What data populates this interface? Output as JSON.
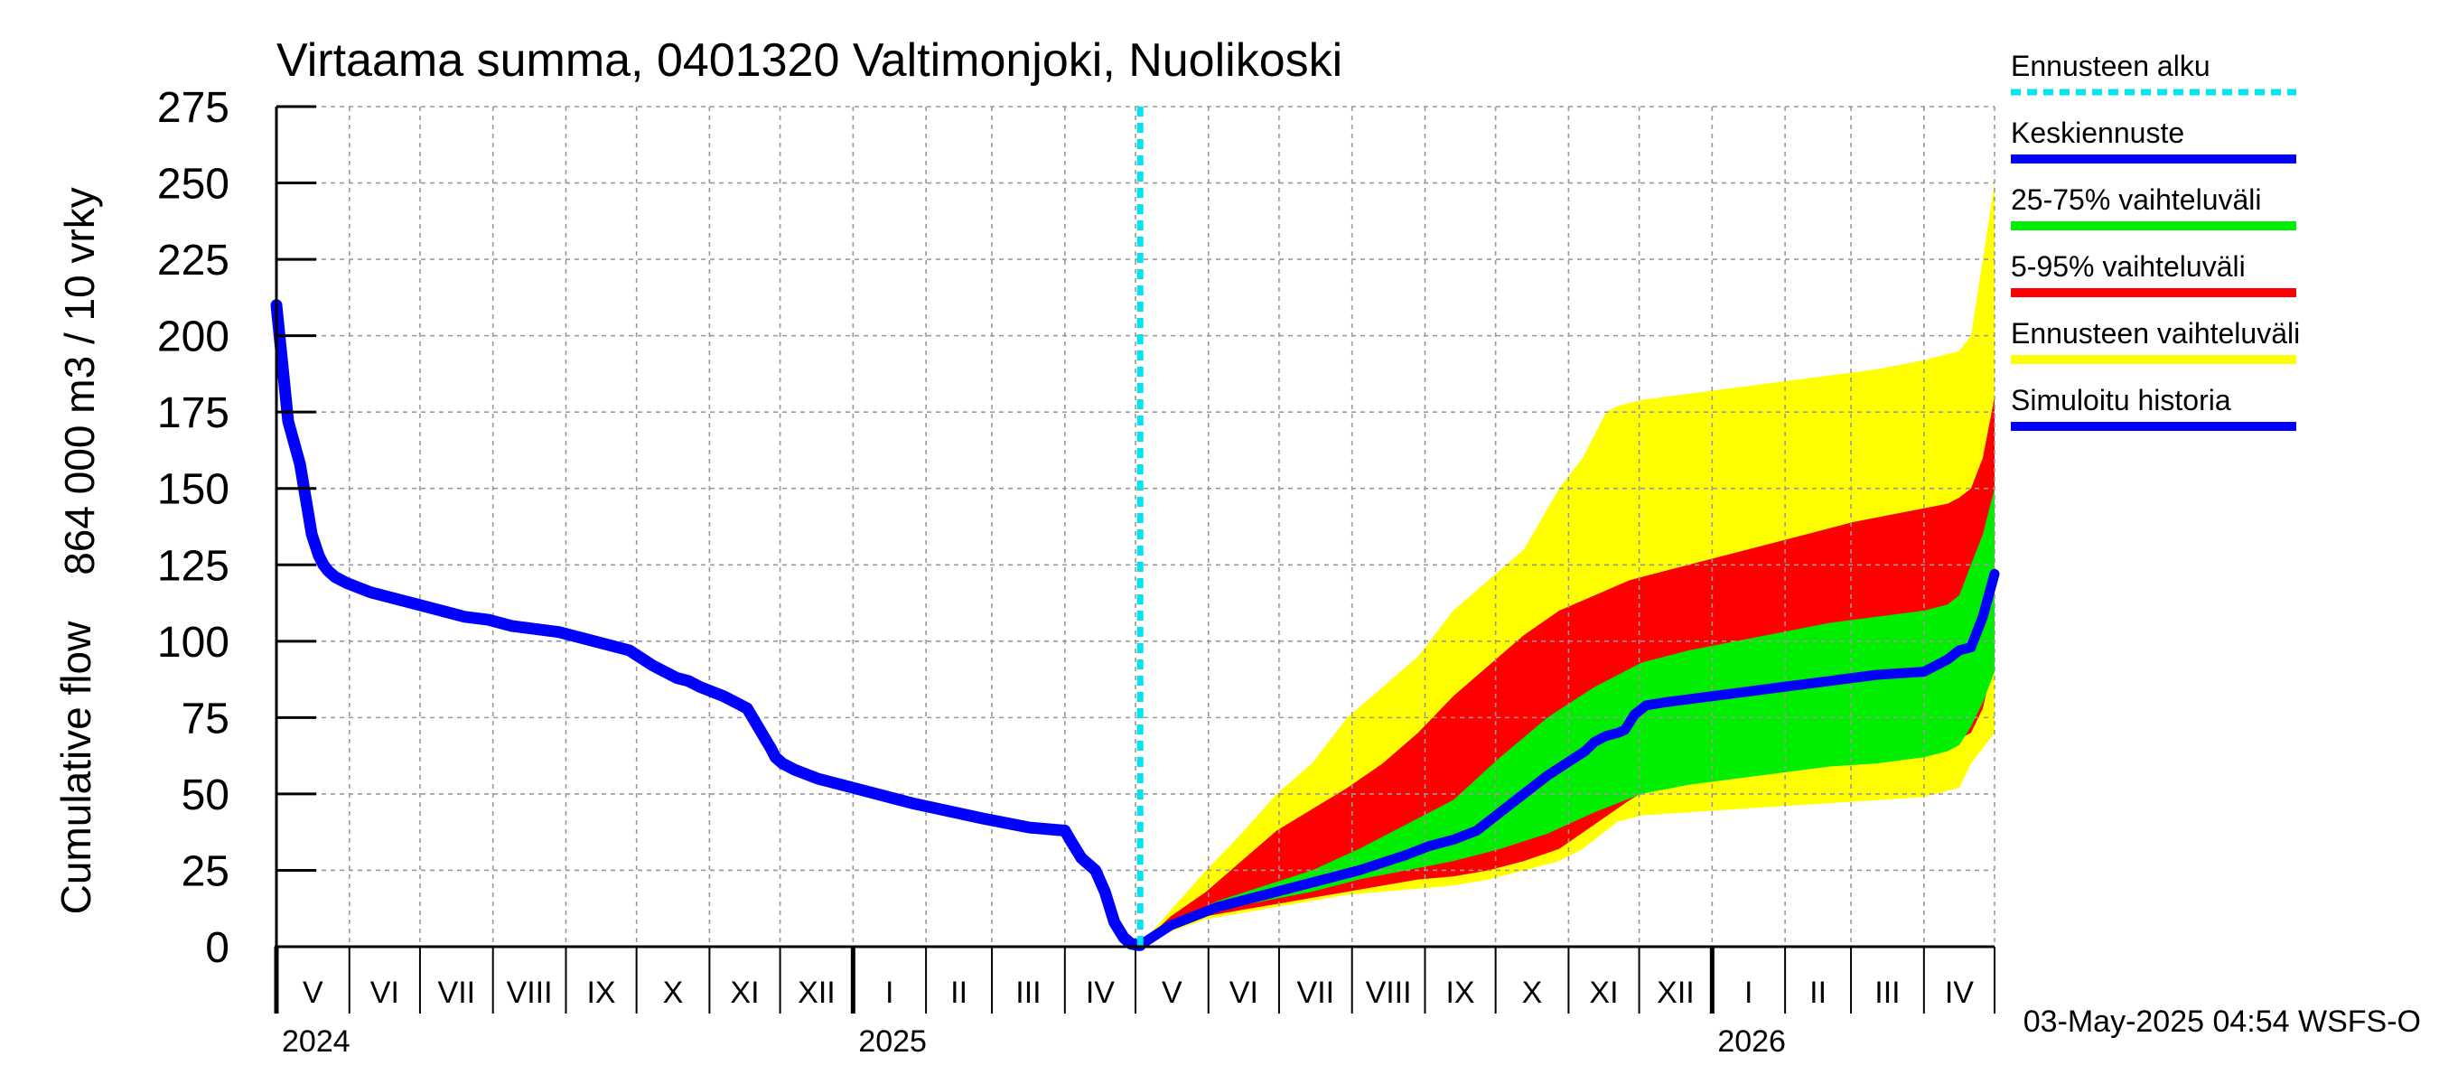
{
  "chart_data": {
    "type": "area",
    "title": "Virtaama summa, 0401320 Valtimonjoki, Nuolikoski",
    "ylabel_primary": "864 000 m3 / 10 vrky",
    "ylabel_secondary": "Cumulative flow",
    "ylim": [
      0,
      275
    ],
    "yticks": [
      0,
      25,
      50,
      75,
      100,
      125,
      150,
      175,
      200,
      225,
      250,
      275
    ],
    "ytick_labels": [
      "0",
      "25",
      "50",
      "75",
      "100",
      "125",
      "150",
      "175",
      "200",
      "225",
      "250",
      "275"
    ],
    "x_range_days": [
      0,
      730
    ],
    "grid": true,
    "months": [
      {
        "label": "V",
        "start": 0,
        "end": 31
      },
      {
        "label": "VI",
        "start": 31,
        "end": 61
      },
      {
        "label": "VII",
        "start": 61,
        "end": 92
      },
      {
        "label": "VIII",
        "start": 92,
        "end": 123
      },
      {
        "label": "IX",
        "start": 123,
        "end": 153
      },
      {
        "label": "X",
        "start": 153,
        "end": 184
      },
      {
        "label": "XI",
        "start": 184,
        "end": 214
      },
      {
        "label": "XII",
        "start": 214,
        "end": 245
      },
      {
        "label": "I",
        "start": 245,
        "end": 276
      },
      {
        "label": "II",
        "start": 276,
        "end": 304
      },
      {
        "label": "III",
        "start": 304,
        "end": 335
      },
      {
        "label": "IV",
        "start": 335,
        "end": 365
      },
      {
        "label": "V",
        "start": 365,
        "end": 396
      },
      {
        "label": "VI",
        "start": 396,
        "end": 426
      },
      {
        "label": "VII",
        "start": 426,
        "end": 457
      },
      {
        "label": "VIII",
        "start": 457,
        "end": 488
      },
      {
        "label": "IX",
        "start": 488,
        "end": 518
      },
      {
        "label": "X",
        "start": 518,
        "end": 549
      },
      {
        "label": "XI",
        "start": 549,
        "end": 579
      },
      {
        "label": "XII",
        "start": 579,
        "end": 610
      },
      {
        "label": "I",
        "start": 610,
        "end": 641
      },
      {
        "label": "II",
        "start": 641,
        "end": 669
      },
      {
        "label": "III",
        "start": 669,
        "end": 700
      },
      {
        "label": "IV",
        "start": 700,
        "end": 730
      }
    ],
    "years": [
      {
        "label": "2024",
        "day": 0
      },
      {
        "label": "2025",
        "day": 245
      },
      {
        "label": "2026",
        "day": 610
      }
    ],
    "forecast_start_day": 367,
    "series": [
      {
        "name": "Simuloitu historia",
        "x": [
          0,
          5,
          10,
          15,
          18,
          20,
          22,
          25,
          30,
          40,
          60,
          80,
          90,
          100,
          120,
          130,
          135,
          150,
          160,
          165,
          170,
          175,
          180,
          190,
          200,
          210,
          212,
          215,
          220,
          230,
          250,
          270,
          300,
          320,
          335,
          338,
          342,
          345,
          348,
          352,
          356,
          360,
          363,
          366,
          367
        ],
        "values": [
          210,
          172,
          158,
          135,
          128,
          125,
          123,
          121,
          119,
          116,
          112,
          108,
          107,
          105,
          103,
          101,
          100,
          97,
          92,
          90,
          88,
          87,
          85,
          82,
          78,
          65,
          62,
          60,
          58,
          55,
          51,
          47,
          42,
          39,
          38,
          34,
          29,
          27,
          25,
          18,
          8,
          3,
          1,
          0.5,
          0.5
        ]
      },
      {
        "name": "Keskiennuste",
        "x": [
          367,
          380,
          400,
          420,
          440,
          460,
          480,
          490,
          500,
          510,
          520,
          530,
          540,
          550,
          556,
          560,
          565,
          570,
          573,
          577,
          582,
          590,
          600,
          620,
          640,
          660,
          680,
          700,
          705,
          710,
          715,
          720,
          725,
          730
        ],
        "values": [
          0.5,
          7,
          13,
          17,
          21,
          25,
          30,
          33,
          35,
          38,
          44,
          50,
          56,
          61,
          64,
          67,
          69,
          70,
          71,
          76,
          79,
          80,
          81,
          83,
          85,
          87,
          89,
          90,
          92,
          94,
          97,
          98,
          108,
          122
        ]
      },
      {
        "name": "Ennusteen vaihteluväli",
        "x": [
          367,
          380,
          395,
          410,
          425,
          440,
          455,
          470,
          485,
          500,
          515,
          530,
          545,
          555,
          565,
          570,
          575,
          580,
          600,
          620,
          640,
          660,
          680,
          700,
          715,
          720,
          725,
          730
        ],
        "upper": [
          0.5,
          12,
          25,
          37,
          50,
          60,
          75,
          85,
          95,
          110,
          120,
          130,
          150,
          160,
          175,
          177,
          178,
          179,
          181,
          183,
          185,
          187,
          189,
          192,
          195,
          200,
          225,
          250
        ],
        "lower": [
          0.5,
          5,
          9,
          11,
          13,
          15,
          17,
          18,
          19,
          20,
          22,
          25,
          28,
          32,
          38,
          41,
          42,
          43,
          44,
          45,
          46,
          47,
          48,
          49,
          52,
          60,
          65,
          70
        ]
      },
      {
        "name": "5-95% vaihteluväli",
        "x": [
          367,
          380,
          395,
          410,
          425,
          440,
          455,
          470,
          485,
          500,
          515,
          530,
          545,
          560,
          575,
          590,
          610,
          630,
          650,
          670,
          690,
          710,
          715,
          720,
          725,
          730
        ],
        "upper": [
          0.5,
          10,
          18,
          28,
          38,
          45,
          52,
          60,
          70,
          82,
          92,
          102,
          110,
          115,
          120,
          123,
          127,
          131,
          135,
          139,
          142,
          145,
          147,
          150,
          160,
          180
        ],
        "lower": [
          0.5,
          6,
          10,
          12,
          14,
          16,
          18,
          20,
          22,
          23,
          25,
          28,
          32,
          40,
          48,
          55,
          60,
          62,
          64,
          65,
          66,
          67,
          68,
          70,
          78,
          95
        ]
      },
      {
        "name": "25-75% vaihteluväli",
        "x": [
          367,
          380,
          400,
          420,
          440,
          460,
          480,
          500,
          520,
          540,
          560,
          580,
          600,
          620,
          640,
          660,
          680,
          700,
          710,
          715,
          720,
          725,
          730
        ],
        "upper": [
          0.5,
          8,
          15,
          20,
          25,
          32,
          40,
          48,
          62,
          75,
          85,
          93,
          97,
          100,
          103,
          106,
          108,
          110,
          112,
          115,
          125,
          135,
          150
        ],
        "lower": [
          0.5,
          6,
          12,
          15,
          18,
          22,
          25,
          28,
          32,
          37,
          44,
          50,
          53,
          55,
          57,
          59,
          60,
          62,
          64,
          66,
          72,
          80,
          90
        ]
      }
    ],
    "legend": {
      "placement": "right",
      "entries": [
        {
          "label": "Ennusteen alku",
          "color": "#00e5ee",
          "dashed": true
        },
        {
          "label": "Keskiennuste",
          "color": "#0000ff"
        },
        {
          "label": "25-75% vaihteluväli",
          "color": "#00ee00"
        },
        {
          "label": "5-95% vaihteluväli",
          "color": "#ff0000"
        },
        {
          "label": "Ennusteen vaihteluväli",
          "color": "#ffff00"
        },
        {
          "label": "Simuloitu historia",
          "color": "#0000ff"
        }
      ]
    },
    "footer": "03-May-2025 04:54 WSFS-O"
  },
  "colors": {
    "history": "#0000ff",
    "median": "#0000ff",
    "band_outer": "#ffff00",
    "band_5_95": "#ff0000",
    "band_25_75": "#00ee00",
    "forecast_start": "#00e5ee",
    "grid": "#999999"
  }
}
